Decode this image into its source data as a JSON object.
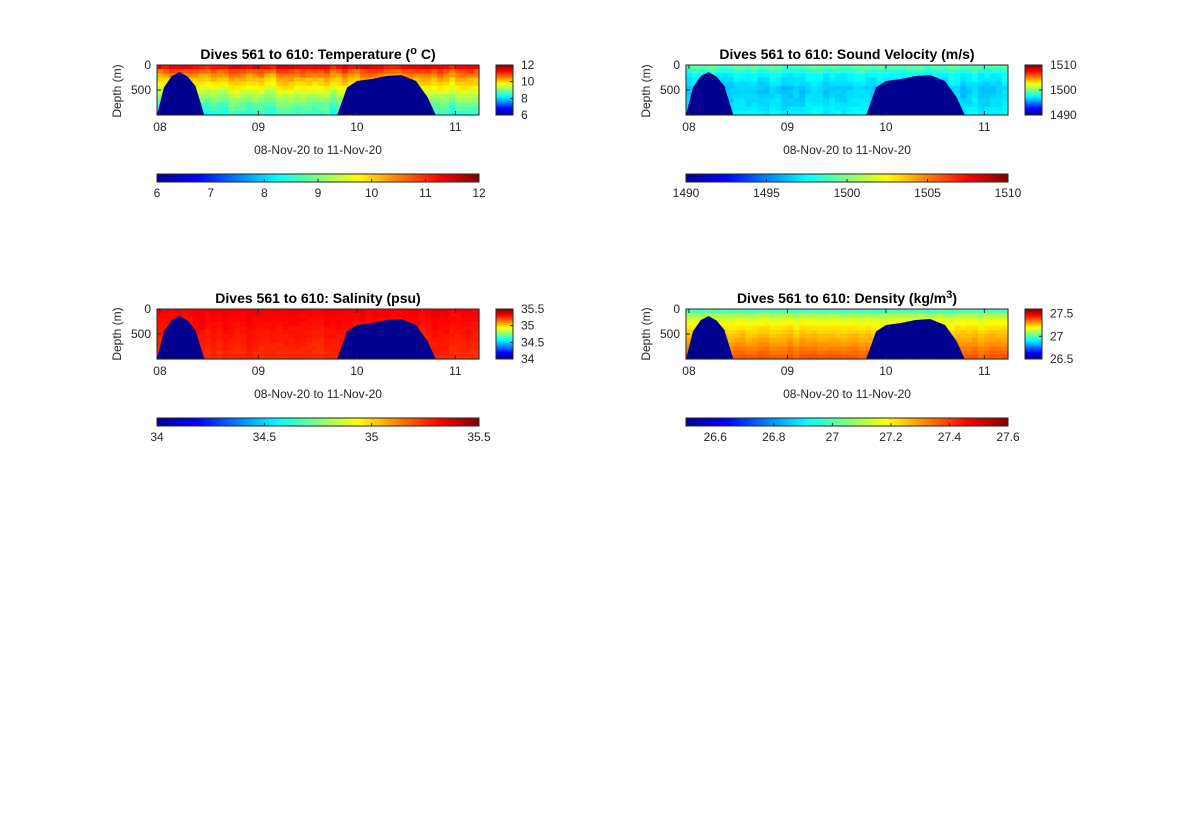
{
  "chart_data": [
    {
      "type": "heatmap",
      "title": "Dives 561 to 610: Temperature (",
      "title_sup": "o",
      "title_after": " C)",
      "xlabel": "08-Nov-20 to 11-Nov-20",
      "ylabel": "Depth (m)",
      "x_ticks": [
        "08",
        "09",
        "10",
        "11"
      ],
      "x_tick_values": [
        8,
        9,
        10,
        11
      ],
      "xlim": [
        7.97,
        11.24
      ],
      "y_ticks": [
        "0",
        "500"
      ],
      "y_tick_values": [
        0,
        500
      ],
      "ylim": [
        0,
        1000
      ],
      "clim": [
        6,
        12
      ],
      "side_colorbar_ticks": [
        "12",
        "10",
        "8",
        "6"
      ],
      "side_colorbar_values": [
        12,
        10,
        8,
        6
      ],
      "bottom_colorbar_ticks": [
        "6",
        "7",
        "8",
        "9",
        "10",
        "11",
        "12"
      ],
      "bottom_colorbar_values": [
        6,
        7,
        8,
        9,
        10,
        11,
        12
      ],
      "profile": {
        "depth": [
          0,
          60,
          150,
          300,
          500,
          700,
          1000
        ],
        "value": [
          11.6,
          11.1,
          10.6,
          10.1,
          9.6,
          9.0,
          8.4
        ]
      },
      "noise": 0.35,
      "bathymetry": {
        "x": [
          7.97,
          8.04,
          8.12,
          8.2,
          8.28,
          8.36,
          8.45,
          9.8,
          9.9,
          10.0,
          10.15,
          10.3,
          10.45,
          10.6,
          10.72,
          10.8,
          11.24
        ],
        "depth": [
          1000,
          450,
          220,
          140,
          230,
          420,
          1000,
          1000,
          450,
          320,
          280,
          220,
          200,
          320,
          650,
          1000,
          1000
        ]
      }
    },
    {
      "type": "heatmap",
      "title": "Dives 561 to 610: Sound Velocity (m/s)",
      "xlabel": "08-Nov-20 to 11-Nov-20",
      "ylabel": "Depth (m)",
      "x_ticks": [
        "08",
        "09",
        "10",
        "11"
      ],
      "x_tick_values": [
        8,
        9,
        10,
        11
      ],
      "xlim": [
        7.97,
        11.24
      ],
      "y_ticks": [
        "0",
        "500"
      ],
      "y_tick_values": [
        0,
        500
      ],
      "ylim": [
        0,
        1000
      ],
      "clim": [
        1490,
        1510
      ],
      "side_colorbar_ticks": [
        "1510",
        "1500",
        "1490"
      ],
      "side_colorbar_values": [
        1510,
        1500,
        1490
      ],
      "bottom_colorbar_ticks": [
        "1490",
        "1495",
        "1500",
        "1505",
        "1510"
      ],
      "bottom_colorbar_values": [
        1490,
        1495,
        1500,
        1505,
        1510
      ],
      "profile": {
        "depth": [
          0,
          200,
          500,
          800,
          1000
        ],
        "value": [
          1499.5,
          1497.5,
          1496.5,
          1497.0,
          1497.5
        ]
      },
      "noise": 0.8,
      "bathymetry": {
        "x": [
          7.97,
          8.04,
          8.12,
          8.2,
          8.28,
          8.36,
          8.45,
          9.8,
          9.9,
          10.0,
          10.15,
          10.3,
          10.45,
          10.6,
          10.72,
          10.8,
          11.24
        ],
        "depth": [
          1000,
          450,
          220,
          140,
          230,
          420,
          1000,
          1000,
          450,
          320,
          280,
          220,
          200,
          320,
          650,
          1000,
          1000
        ]
      }
    },
    {
      "type": "heatmap",
      "title": "Dives 561 to 610: Salinity (psu)",
      "xlabel": "08-Nov-20 to 11-Nov-20",
      "ylabel": "Depth (m)",
      "x_ticks": [
        "08",
        "09",
        "10",
        "11"
      ],
      "x_tick_values": [
        8,
        9,
        10,
        11
      ],
      "xlim": [
        7.97,
        11.24
      ],
      "y_ticks": [
        "0",
        "500"
      ],
      "y_tick_values": [
        0,
        500
      ],
      "ylim": [
        0,
        1000
      ],
      "clim": [
        34,
        35.5
      ],
      "side_colorbar_ticks": [
        "35.5",
        "35",
        "34.5",
        "34"
      ],
      "side_colorbar_values": [
        35.5,
        35,
        34.5,
        34
      ],
      "bottom_colorbar_ticks": [
        "34",
        "34.5",
        "35",
        "35.5"
      ],
      "bottom_colorbar_values": [
        34,
        34.5,
        35,
        35.5
      ],
      "profile": {
        "depth": [
          0,
          300,
          700,
          1000
        ],
        "value": [
          35.33,
          35.3,
          35.27,
          35.25
        ]
      },
      "noise": 0.03,
      "bathymetry": {
        "x": [
          7.97,
          8.04,
          8.12,
          8.2,
          8.28,
          8.36,
          8.45,
          9.8,
          9.9,
          10.0,
          10.15,
          10.3,
          10.45,
          10.6,
          10.72,
          10.8,
          11.24
        ],
        "depth": [
          1000,
          450,
          220,
          140,
          230,
          420,
          1000,
          1000,
          450,
          320,
          280,
          220,
          200,
          320,
          650,
          1000,
          1000
        ]
      }
    },
    {
      "type": "heatmap",
      "title": "Dives 561 to 610: Density (kg/m",
      "title_sup": "3",
      "title_after": ")",
      "xlabel": "08-Nov-20 to 11-Nov-20",
      "ylabel": "Depth (m)",
      "x_ticks": [
        "08",
        "09",
        "10",
        "11"
      ],
      "x_tick_values": [
        8,
        9,
        10,
        11
      ],
      "xlim": [
        7.97,
        11.24
      ],
      "y_ticks": [
        "0",
        "500"
      ],
      "y_tick_values": [
        0,
        500
      ],
      "ylim": [
        0,
        1000
      ],
      "clim": [
        26.5,
        27.6
      ],
      "side_colorbar_ticks": [
        "27.5",
        "27",
        "26.5"
      ],
      "side_colorbar_values": [
        27.5,
        27,
        26.5
      ],
      "bottom_colorbar_ticks": [
        "26.6",
        "26.8",
        "27",
        "27.2",
        "27.4",
        "27.6"
      ],
      "bottom_colorbar_values": [
        26.6,
        26.8,
        27,
        27.2,
        27.4,
        27.6
      ],
      "profile": {
        "depth": [
          0,
          80,
          200,
          400,
          700,
          1000
        ],
        "value": [
          26.95,
          27.05,
          27.15,
          27.22,
          27.3,
          27.38
        ]
      },
      "noise": 0.025,
      "bathymetry": {
        "x": [
          7.97,
          8.04,
          8.12,
          8.2,
          8.28,
          8.36,
          8.45,
          9.8,
          9.9,
          10.0,
          10.15,
          10.3,
          10.45,
          10.6,
          10.72,
          10.8,
          11.24
        ],
        "depth": [
          1000,
          450,
          220,
          140,
          230,
          420,
          1000,
          1000,
          450,
          320,
          280,
          220,
          200,
          320,
          650,
          1000,
          1000
        ]
      }
    }
  ],
  "colors": {
    "colormap": "jet",
    "bathymetry_fill": "#00008f",
    "axis": "#262626"
  }
}
